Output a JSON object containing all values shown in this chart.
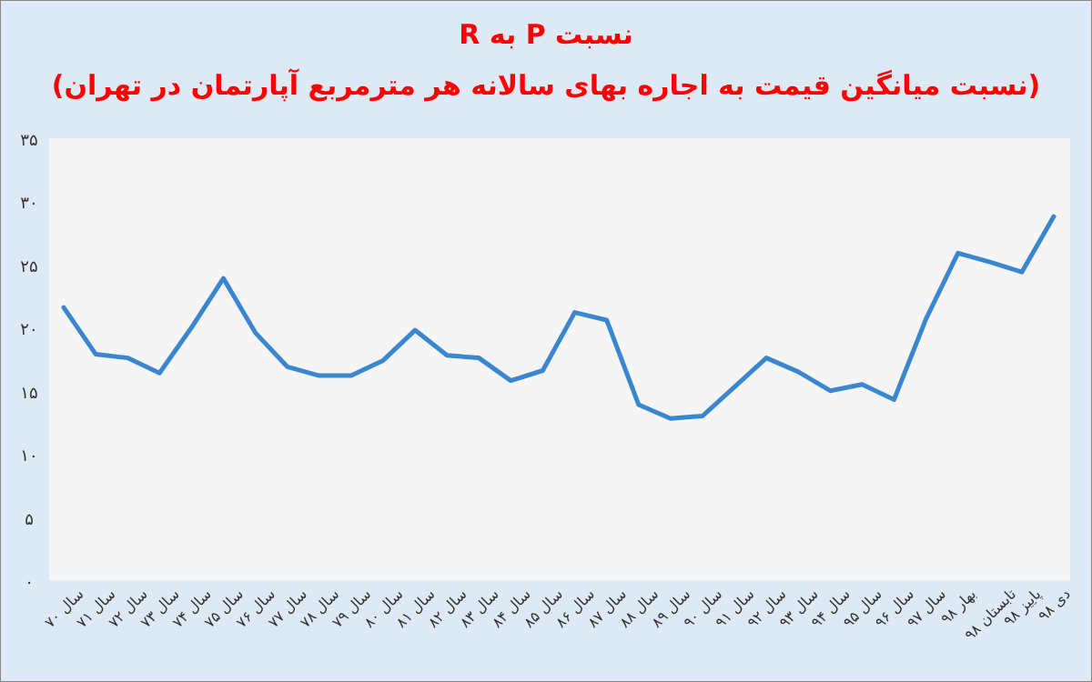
{
  "chart_data": {
    "type": "line",
    "title": "نسبت P به R",
    "subtitle": "(نسبت میانگین قیمت به اجاره بهای سالانه هر مترمربع آپارتمان در تهران)",
    "categories": [
      "سال ۷۰",
      "سال ۷۱",
      "سال ۷۲",
      "سال ۷۳",
      "سال ۷۴",
      "سال ۷۵",
      "سال ۷۶",
      "سال ۷۷",
      "سال ۷۸",
      "سال ۷۹",
      "سال ۸۰",
      "سال ۸۱",
      "سال ۸۲",
      "سال ۸۳",
      "سال ۸۴",
      "سال ۸۵",
      "سال ۸۶",
      "سال ۸۷",
      "سال ۸۸",
      "سال ۸۹",
      "سال ۹۰",
      "سال ۹۱",
      "سال ۹۲",
      "سال ۹۳",
      "سال ۹۴",
      "سال ۹۵",
      "سال ۹۶",
      "سال ۹۷",
      "بهار ۹۸",
      "تابستان ۹۸",
      "پاییز ۹۸",
      "دی ۹۸"
    ],
    "series": [
      {
        "color": "#3a87d0",
        "values": [
          21.6,
          17.9,
          17.6,
          16.4,
          20.0,
          23.9,
          19.6,
          16.9,
          16.2,
          16.2,
          17.4,
          19.8,
          17.8,
          17.6,
          15.8,
          16.6,
          21.2,
          20.6,
          13.9,
          12.8,
          13.0,
          15.3,
          17.6,
          16.5,
          15.0,
          15.5,
          14.3,
          20.7,
          25.9,
          25.2,
          24.4,
          28.8
        ]
      }
    ],
    "ylim": [
      0,
      35
    ],
    "yticks": [
      {
        "value": 0,
        "label": "۰"
      },
      {
        "value": 5,
        "label": "۵"
      },
      {
        "value": 10,
        "label": "۱۰"
      },
      {
        "value": 15,
        "label": "۱۵"
      },
      {
        "value": 20,
        "label": "۲۰"
      },
      {
        "value": 25,
        "label": "۲۵"
      },
      {
        "value": 30,
        "label": "۳۰"
      },
      {
        "value": 35,
        "label": "۳۵"
      }
    ],
    "grid": false
  }
}
